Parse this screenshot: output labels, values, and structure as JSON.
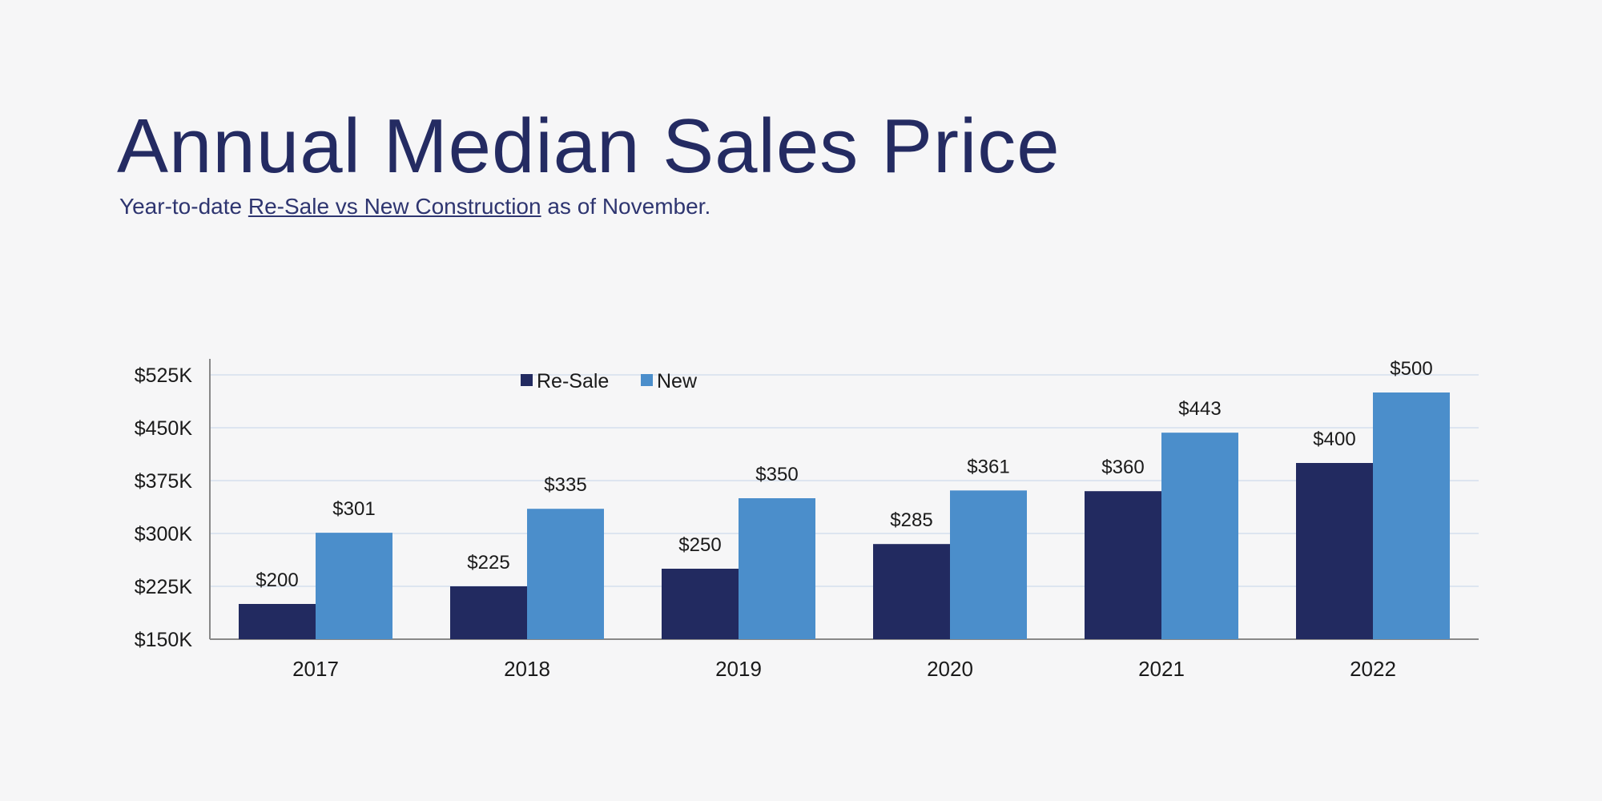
{
  "title": "Annual Median Sales Price",
  "subtitle": {
    "prefix": "Year-to-date ",
    "link": "Re-Sale vs New Construction",
    "suffix": " as of November."
  },
  "colors": {
    "resale": "#222a60",
    "new": "#4b8ecb",
    "title": "#242b62",
    "grid": "#dde5f0"
  },
  "chart_data": {
    "type": "bar",
    "categories": [
      "2017",
      "2018",
      "2019",
      "2020",
      "2021",
      "2022"
    ],
    "series": [
      {
        "name": "Re-Sale",
        "values": [
          200,
          225,
          250,
          285,
          360,
          400
        ],
        "labels": [
          "$200",
          "$225",
          "$250",
          "$285",
          "$360",
          "$400"
        ]
      },
      {
        "name": "New",
        "values": [
          301,
          335,
          350,
          361,
          443,
          500
        ],
        "labels": [
          "$301",
          "$335",
          "$350",
          "$361",
          "$443",
          "$500"
        ]
      }
    ],
    "ylim": [
      150,
      525
    ],
    "yticks": [
      150,
      225,
      300,
      375,
      450,
      525
    ],
    "ytick_labels": [
      "$150K",
      "$225K",
      "$300K",
      "$375K",
      "$450K",
      "$525K"
    ],
    "grid": true,
    "legend": "top-center",
    "xlabel": "",
    "ylabel": ""
  }
}
